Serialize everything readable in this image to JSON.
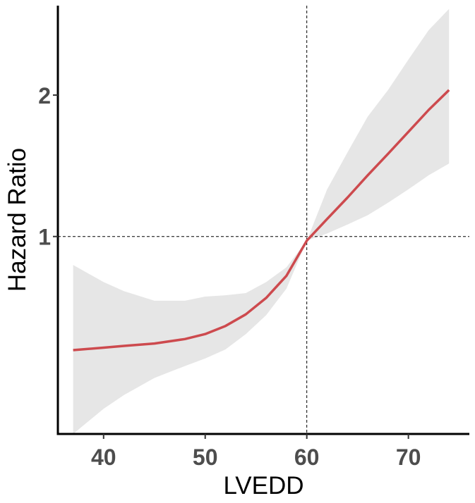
{
  "chart_data": {
    "type": "line",
    "title": "",
    "xlabel": "LVEDD",
    "ylabel": "Hazard Ratio",
    "xlim": [
      35.5,
      76
    ],
    "ylim": [
      0.38,
      3.1
    ],
    "y_scale": "log",
    "x_ticks": [
      40,
      50,
      60,
      70
    ],
    "y_ticks": [
      1,
      2
    ],
    "reference_lines": {
      "x": 60,
      "y": 1
    },
    "grid": false,
    "series": [
      {
        "x": [
          37,
          40,
          42,
          45,
          48,
          50,
          52,
          54,
          56,
          58,
          60,
          62,
          64,
          66,
          68,
          70,
          72,
          74
        ],
        "y": [
          0.573,
          0.58,
          0.585,
          0.592,
          0.605,
          0.62,
          0.645,
          0.683,
          0.74,
          0.825,
          0.98,
          1.09,
          1.21,
          1.35,
          1.5,
          1.67,
          1.86,
          2.05
        ],
        "ci_lower": [
          0.38,
          0.43,
          0.46,
          0.5,
          0.53,
          0.55,
          0.575,
          0.62,
          0.68,
          0.775,
          0.98,
          1.015,
          1.06,
          1.11,
          1.18,
          1.26,
          1.35,
          1.43
        ],
        "ci_upper": [
          0.87,
          0.8,
          0.765,
          0.73,
          0.73,
          0.745,
          0.75,
          0.758,
          0.8,
          0.86,
          0.98,
          1.26,
          1.51,
          1.8,
          2.05,
          2.38,
          2.75,
          3.05
        ]
      }
    ],
    "colors": {
      "line": "#cd4a4e",
      "band": "#e6e6e6",
      "axis": "#000000",
      "tick_text": "#4d4d4d"
    }
  }
}
